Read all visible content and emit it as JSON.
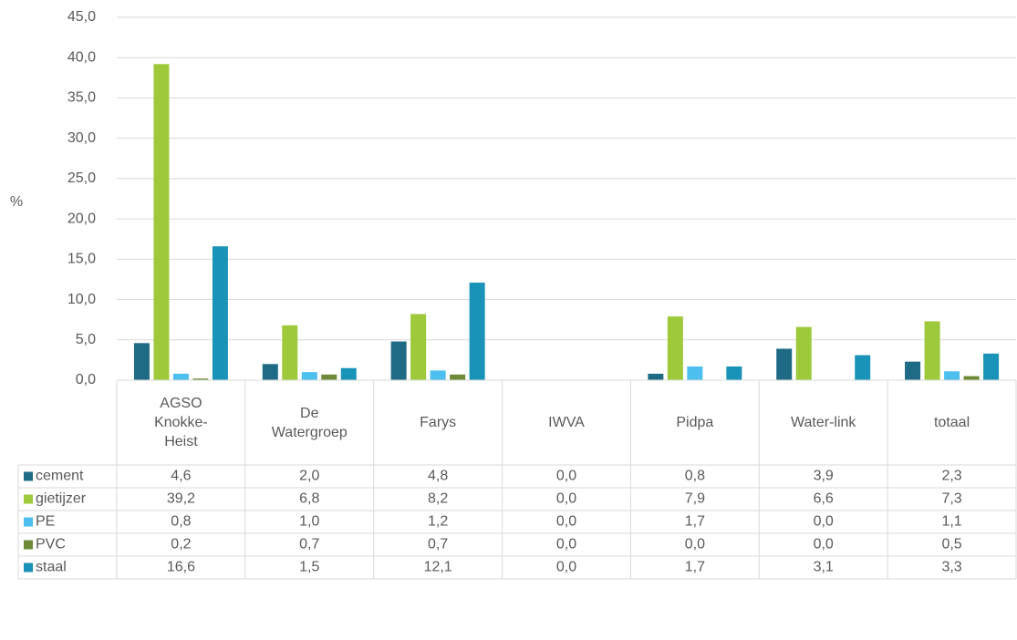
{
  "chart_data": {
    "type": "bar",
    "y_label": "%",
    "categories": [
      "AGSO Knokke-Heist",
      "De Watergroep",
      "Farys",
      "IWVA",
      "Pidpa",
      "Water-link",
      "totaal"
    ],
    "series": [
      {
        "name": "cement",
        "color": "#1f6b85",
        "values": [
          4.6,
          2.0,
          4.8,
          0.0,
          0.8,
          3.9,
          2.3
        ],
        "value_labels": [
          "4,6",
          "2,0",
          "4,8",
          "0,0",
          "0,8",
          "3,9",
          "2,3"
        ]
      },
      {
        "name": "gietijzer",
        "color": "#9dc93b",
        "values": [
          39.2,
          6.8,
          8.2,
          0.0,
          7.9,
          6.6,
          7.3
        ],
        "value_labels": [
          "39,2",
          "6,8",
          "8,2",
          "0,0",
          "7,9",
          "6,6",
          "7,3"
        ]
      },
      {
        "name": "PE",
        "color": "#4dbfee",
        "values": [
          0.8,
          1.0,
          1.2,
          0.0,
          1.7,
          0.0,
          1.1
        ],
        "value_labels": [
          "0,8",
          "1,0",
          "1,2",
          "0,0",
          "1,7",
          "0,0",
          "1,1"
        ]
      },
      {
        "name": "PVC",
        "color": "#6e8a37",
        "values": [
          0.2,
          0.7,
          0.7,
          0.0,
          0.0,
          0.0,
          0.5
        ],
        "value_labels": [
          "0,2",
          "0,7",
          "0,7",
          "0,0",
          "0,0",
          "0,0",
          "0,5"
        ]
      },
      {
        "name": "staal",
        "color": "#1a93b8",
        "values": [
          16.6,
          1.5,
          12.1,
          0.0,
          1.7,
          3.1,
          3.3
        ],
        "value_labels": [
          "16,6",
          "1,5",
          "12,1",
          "0,0",
          "1,7",
          "3,1",
          "3,3"
        ]
      }
    ],
    "ylim": [
      0,
      45
    ],
    "yticks": [
      {
        "value": 0,
        "label": "0,0"
      },
      {
        "value": 5,
        "label": "5,0"
      },
      {
        "value": 10,
        "label": "10,0"
      },
      {
        "value": 15,
        "label": "15,0"
      },
      {
        "value": 20,
        "label": "20,0"
      },
      {
        "value": 25,
        "label": "25,0"
      },
      {
        "value": 30,
        "label": "30,0"
      },
      {
        "value": 35,
        "label": "35,0"
      },
      {
        "value": 40,
        "label": "40,0"
      },
      {
        "value": 45,
        "label": "45,0"
      }
    ],
    "grid": true
  }
}
